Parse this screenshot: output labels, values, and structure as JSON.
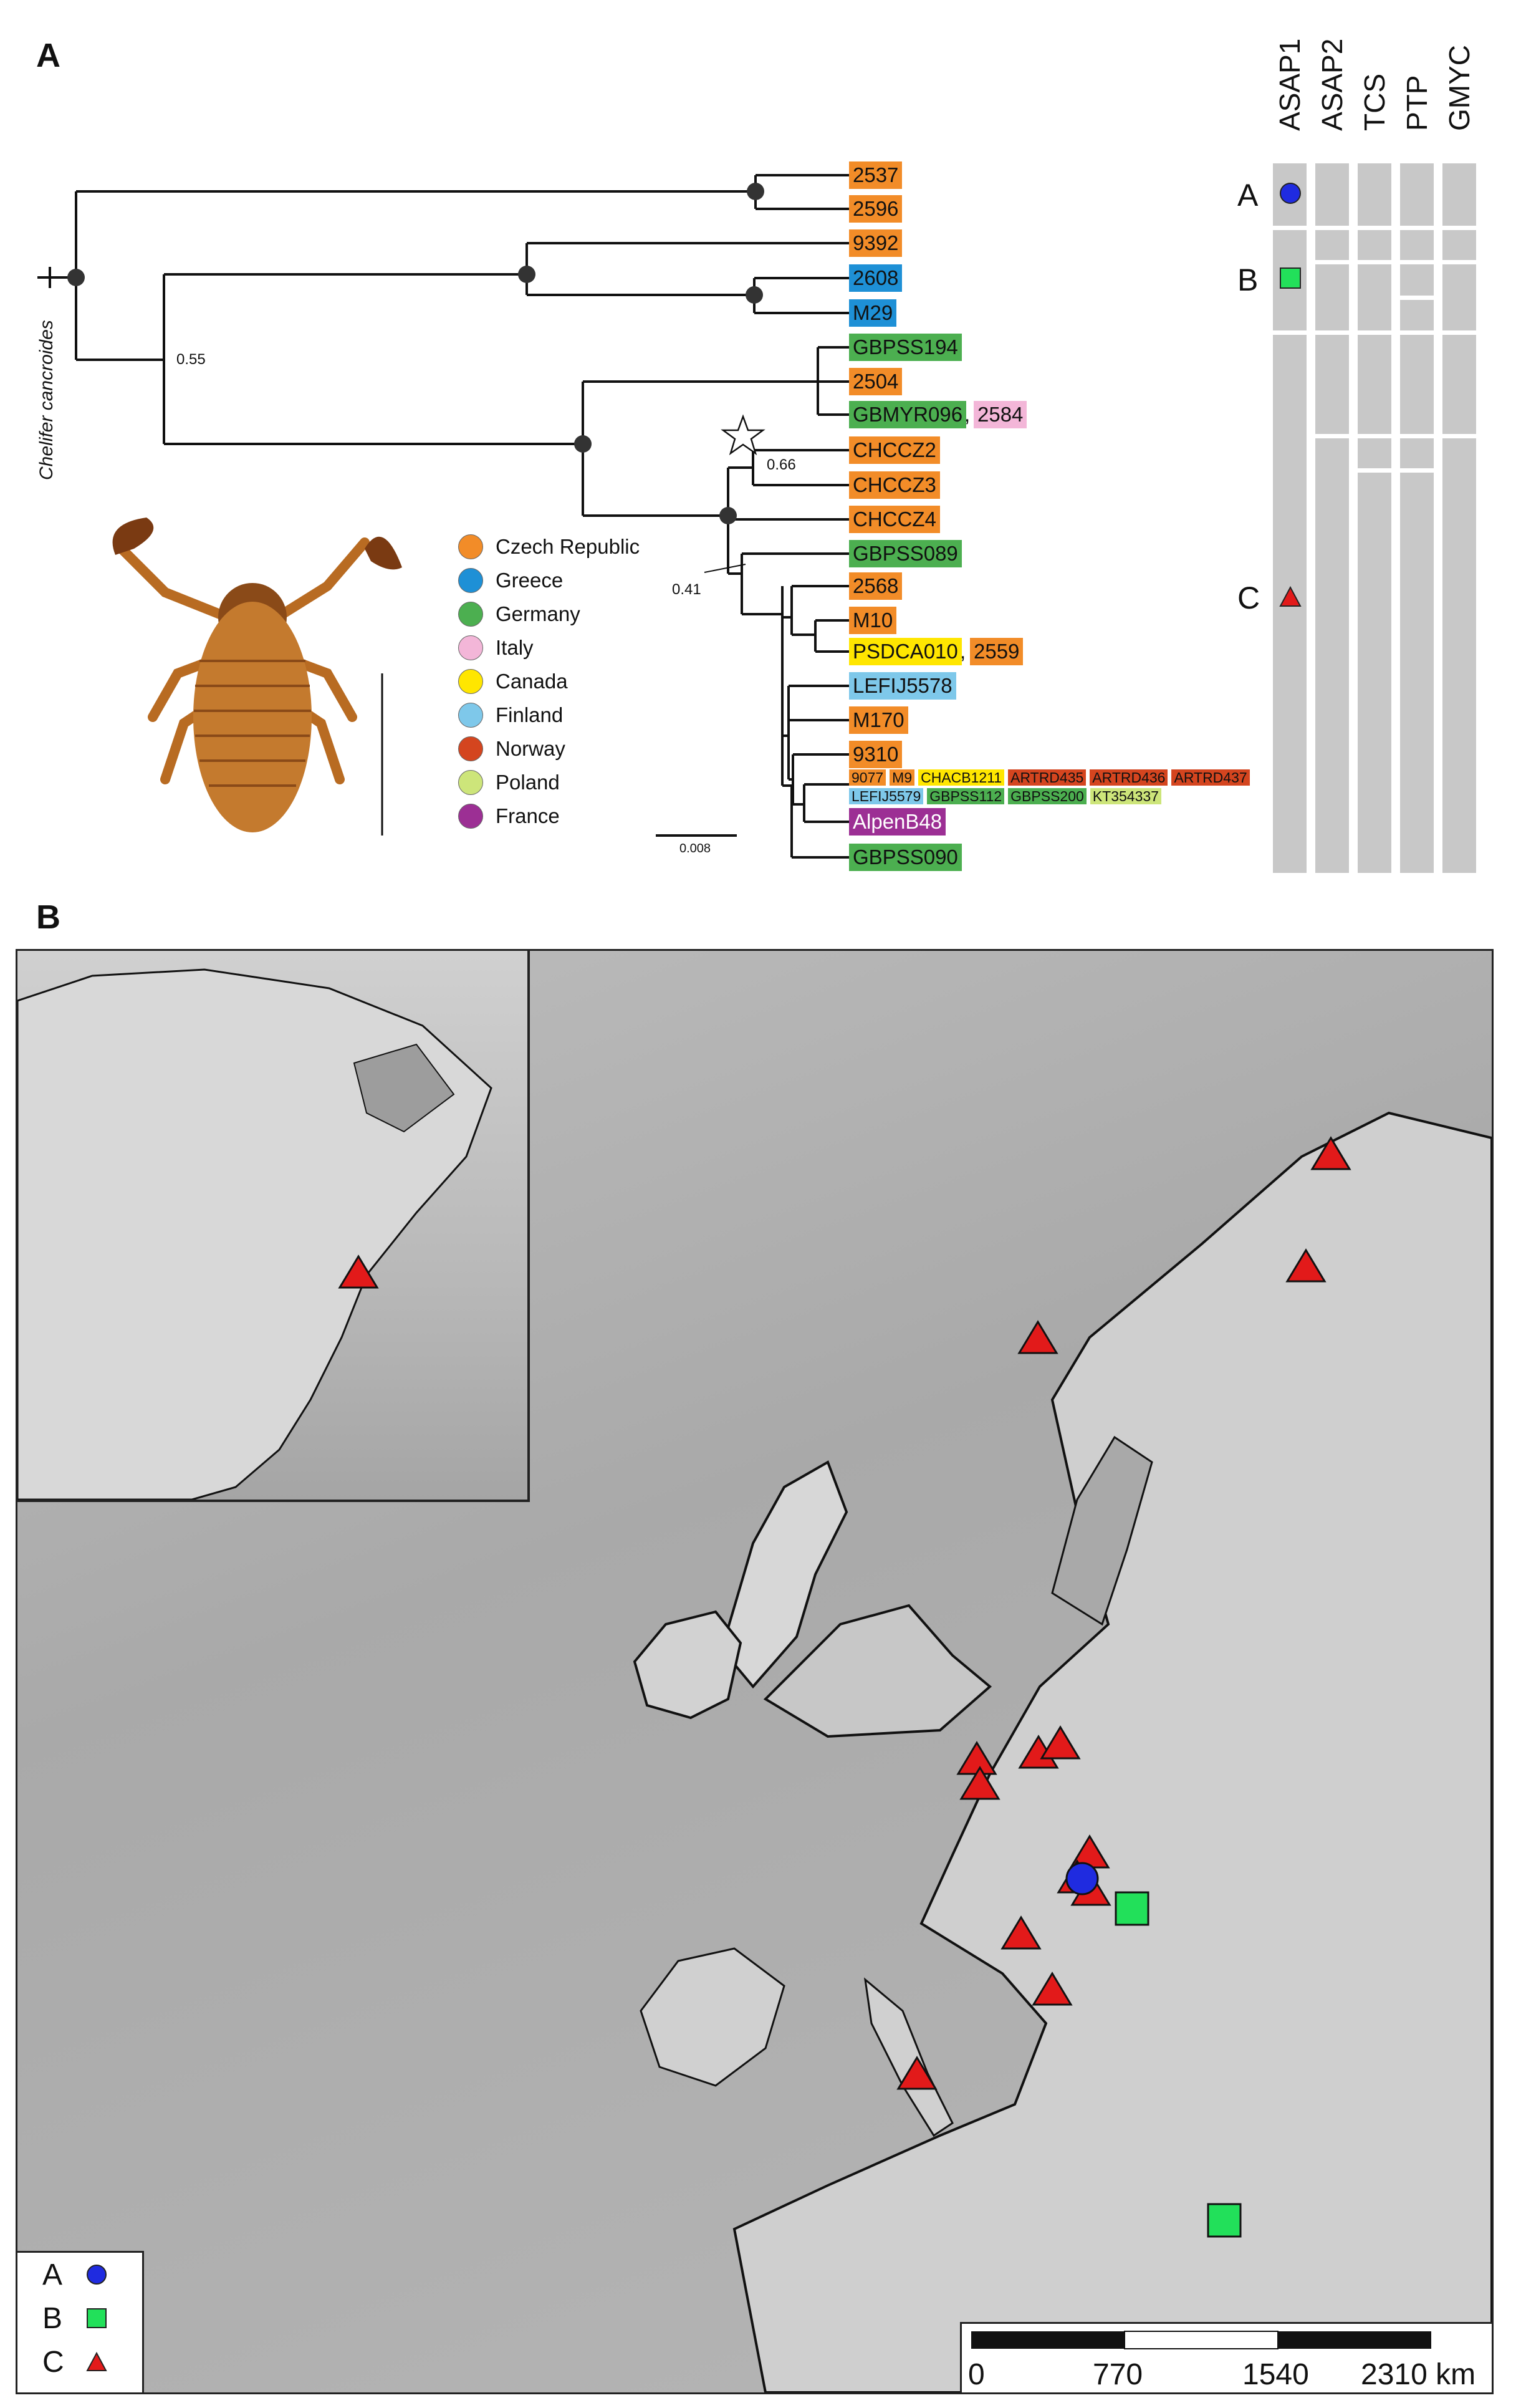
{
  "panels": {
    "a": "A",
    "b": "B"
  },
  "outgroup": "Chelifer cancroides",
  "supports": {
    "s055": "0.55",
    "s066": "0.66",
    "s041": "0.41"
  },
  "scale": {
    "label": "0.008"
  },
  "legend": [
    {
      "country": "Czech Republic",
      "color": "#f28c28"
    },
    {
      "country": "Greece",
      "color": "#1e90d6"
    },
    {
      "country": "Germany",
      "color": "#4caf50"
    },
    {
      "country": "Italy",
      "color": "#f3b6d8"
    },
    {
      "country": "Canada",
      "color": "#ffe600"
    },
    {
      "country": "Finland",
      "color": "#7ec8ea"
    },
    {
      "country": "Norway",
      "color": "#d4451f"
    },
    {
      "country": "Poland",
      "color": "#cde57a"
    },
    {
      "country": "France",
      "color": "#9c2f94"
    }
  ],
  "tips": {
    "t2537": "2537",
    "t2596": "2596",
    "t9392": "9392",
    "t2608": "2608",
    "tM29": "M29",
    "tGBPSS194": "GBPSS194",
    "t2504": "2504",
    "tGBMYR096": "GBMYR096",
    "t2584": "2584",
    "tCHCCZ2": "CHCCZ2",
    "tCHCCZ3": "CHCCZ3",
    "tCHCCZ4": "CHCCZ4",
    "tGBPSS089": "GBPSS089",
    "t2568": "2568",
    "tM10": "M10",
    "tPSDCA010": "PSDCA010",
    "t2559": "2559",
    "tLEFIJ5578": "LEFIJ5578",
    "tM170": "M170",
    "t9310": "9310",
    "t9077": "9077",
    "tM9": "M9",
    "tCHACB1211": "CHACB1211",
    "tARTRD435": "ARTRD435",
    "tARTRD436": "ARTRD436",
    "tARTRD437": "ARTRD437",
    "tLEFIJ5579": "LEFIJ5579",
    "tGBPSS112": "GBPSS112",
    "tGBPSS200": "GBPSS200",
    "tKT354337": "KT354337",
    "tAlpenB48": "AlpenB48",
    "tGBPSS090": "GBPSS090"
  },
  "methods": [
    "ASAP1",
    "ASAP2",
    "TCS",
    "PTP",
    "GMYC"
  ],
  "groups": [
    {
      "letter": "A",
      "marker": "blue-circle",
      "color": "#1f2be0"
    },
    {
      "letter": "B",
      "marker": "green-square",
      "color": "#22e05a"
    },
    {
      "letter": "C",
      "marker": "red-triangle",
      "color": "#e21a1a"
    }
  ],
  "map_scale": [
    "0",
    "770",
    "1540",
    "2310 km"
  ],
  "map_legend": [
    "A",
    "B",
    "C"
  ]
}
